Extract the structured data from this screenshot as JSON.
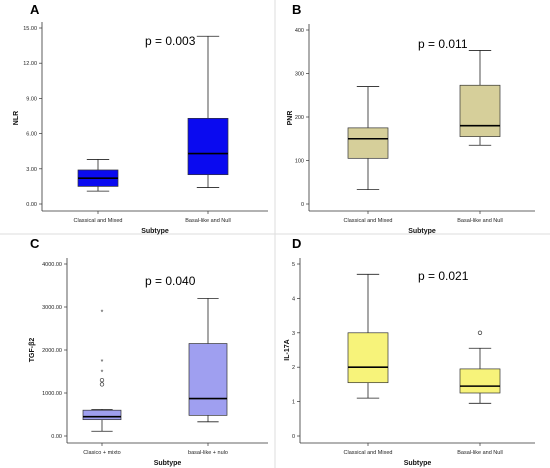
{
  "chart_data": [
    {
      "type": "box",
      "panel_label": "A",
      "xlabel": "Subtype",
      "ylabel": "NLR",
      "annotation": "p = 0.003",
      "ylim": [
        0,
        15
      ],
      "ticks": [
        0,
        3,
        6,
        9,
        12,
        15
      ],
      "tick_labels": [
        "0.00",
        "3.00",
        "6.00",
        "9.00",
        "12.00",
        "15.00"
      ],
      "categories": [
        "Classical and Mixed",
        "Basal-like and Null"
      ],
      "boxes": [
        {
          "min": 1.1,
          "q1": 1.5,
          "median": 2.2,
          "q3": 2.9,
          "max": 3.8,
          "outliers": [],
          "extremes": []
        },
        {
          "min": 1.4,
          "q1": 2.5,
          "median": 4.3,
          "q3": 7.3,
          "max": 14.3,
          "outliers": [],
          "extremes": []
        }
      ],
      "fill": "#0a0af0"
    },
    {
      "type": "box",
      "panel_label": "B",
      "xlabel": "Subtype",
      "ylabel": "PNR",
      "annotation": "p = 0.011",
      "ylim": [
        0,
        400
      ],
      "ticks": [
        0,
        100,
        200,
        300,
        400
      ],
      "tick_labels": [
        "0",
        "100",
        "200",
        "300",
        "400"
      ],
      "categories": [
        "Classical and Mixed",
        "Basal-like and Null"
      ],
      "boxes": [
        {
          "min": 33,
          "q1": 105,
          "median": 150,
          "q3": 175,
          "max": 270,
          "outliers": [],
          "extremes": []
        },
        {
          "min": 135,
          "q1": 155,
          "median": 180,
          "q3": 273,
          "max": 353,
          "outliers": [],
          "extremes": []
        }
      ],
      "fill": "#d6cf9a"
    },
    {
      "type": "box",
      "panel_label": "C",
      "xlabel": "Subtype",
      "ylabel": "TGF-β2",
      "annotation": "p = 0.040",
      "ylim": [
        0,
        4000
      ],
      "ticks": [
        0,
        1000,
        2000,
        3000,
        4000
      ],
      "tick_labels": [
        "0.00",
        "1000.00",
        "2000.00",
        "3000.00",
        "4000.00"
      ],
      "categories": [
        "Clasico + mixto",
        "basal-like + nulo"
      ],
      "boxes": [
        {
          "min": 110,
          "q1": 380,
          "median": 450,
          "q3": 600,
          "max": 620,
          "outliers": [
            1200,
            1300
          ],
          "extremes": [
            1500,
            1750,
            2900
          ]
        },
        {
          "min": 330,
          "q1": 480,
          "median": 870,
          "q3": 2150,
          "max": 3200,
          "outliers": [],
          "extremes": []
        }
      ],
      "fill": "#9f9ff0"
    },
    {
      "type": "box",
      "panel_label": "D",
      "xlabel": "Subtype",
      "ylabel": "IL-17A",
      "annotation": "p = 0.021",
      "ylim": [
        0,
        5
      ],
      "ticks": [
        0,
        1,
        2,
        3,
        4,
        5
      ],
      "tick_labels": [
        "0",
        "1",
        "2",
        "3",
        "4",
        "5"
      ],
      "categories": [
        "Classical and Mixed",
        "Basal-like and Null"
      ],
      "boxes": [
        {
          "min": 1.1,
          "q1": 1.55,
          "median": 2.0,
          "q3": 3.0,
          "max": 4.7,
          "outliers": [],
          "extremes": []
        },
        {
          "min": 0.95,
          "q1": 1.25,
          "median": 1.45,
          "q3": 1.95,
          "max": 2.55,
          "outliers": [
            3.0
          ],
          "extremes": []
        }
      ],
      "fill": "#f7f37a"
    }
  ]
}
